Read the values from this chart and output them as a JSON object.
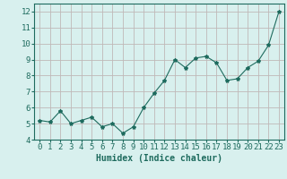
{
  "x": [
    0,
    1,
    2,
    3,
    4,
    5,
    6,
    7,
    8,
    9,
    10,
    11,
    12,
    13,
    14,
    15,
    16,
    17,
    18,
    19,
    20,
    21,
    22,
    23
  ],
  "y": [
    5.2,
    5.1,
    5.8,
    5.0,
    5.2,
    5.4,
    4.8,
    5.0,
    4.4,
    4.8,
    6.0,
    6.9,
    7.7,
    9.0,
    8.5,
    9.1,
    9.2,
    8.8,
    7.7,
    7.8,
    8.5,
    8.9,
    9.9,
    12.0
  ],
  "line_color": "#1e6b5e",
  "marker": "*",
  "marker_size": 3,
  "bg_color": "#d8f0ee",
  "grid_color": "#c8d8d6",
  "xlabel": "Humidex (Indice chaleur)",
  "ylim": [
    4,
    12.5
  ],
  "xlim": [
    -0.5,
    23.5
  ],
  "yticks": [
    4,
    5,
    6,
    7,
    8,
    9,
    10,
    11,
    12
  ],
  "xticks": [
    0,
    1,
    2,
    3,
    4,
    5,
    6,
    7,
    8,
    9,
    10,
    11,
    12,
    13,
    14,
    15,
    16,
    17,
    18,
    19,
    20,
    21,
    22,
    23
  ],
  "xlabel_fontsize": 7,
  "tick_fontsize": 6.5
}
